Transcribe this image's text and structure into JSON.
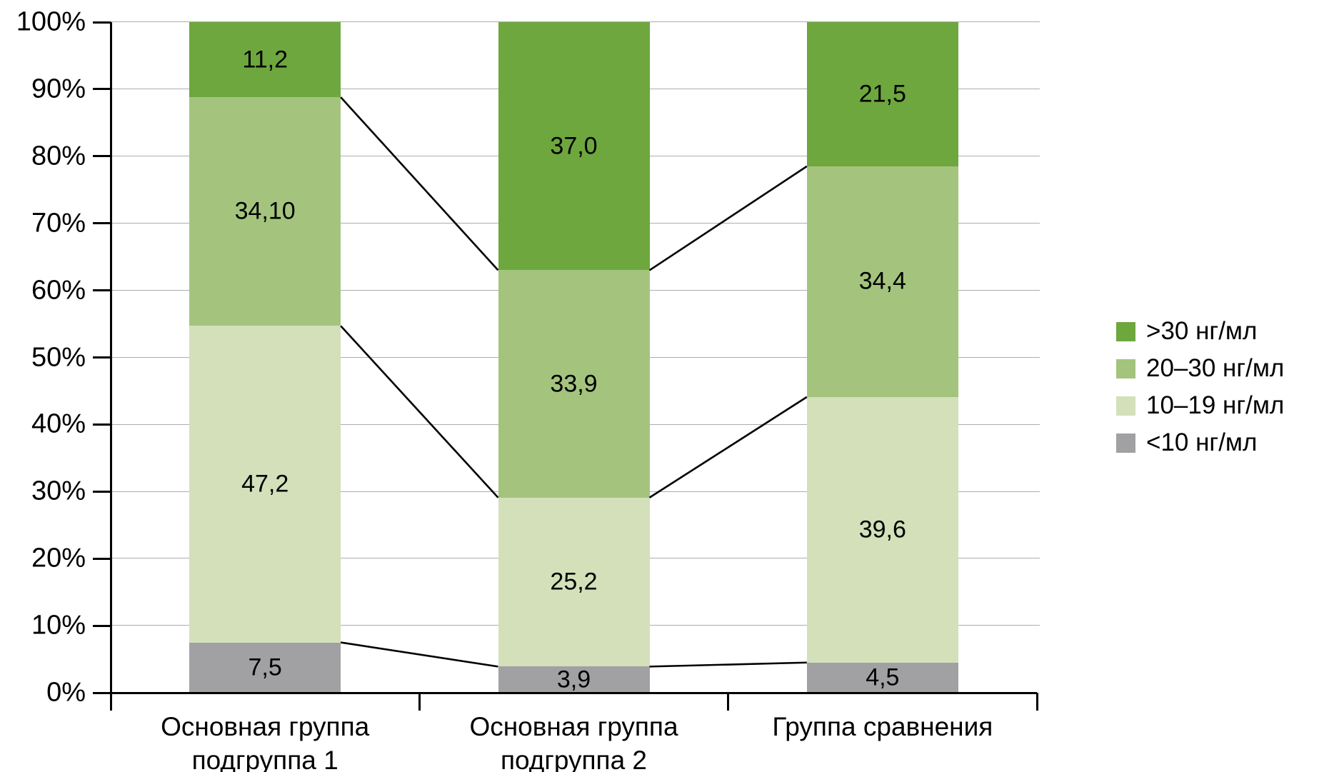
{
  "chart_data": {
    "type": "bar",
    "subtype": "stacked-100-percent-column",
    "title": "",
    "xlabel": "",
    "ylabel": "",
    "categories": [
      {
        "lines": [
          "Основная группа",
          "подгруппа 1"
        ]
      },
      {
        "lines": [
          "Основная группа",
          "подгруппа 2"
        ]
      },
      {
        "lines": [
          "Группа сравнения"
        ]
      }
    ],
    "series": [
      {
        "name": "<10 нг/мл",
        "color": "#a1a1a3",
        "values": [
          7.5,
          3.9,
          4.5
        ],
        "labels": [
          "7,5",
          "3,9",
          "4,5"
        ]
      },
      {
        "name": "10–19 нг/мл",
        "color": "#d3e0ba",
        "values": [
          47.2,
          25.2,
          39.6
        ],
        "labels": [
          "47,2",
          "25,2",
          "39,6"
        ]
      },
      {
        "name": "20–30 нг/мл",
        "color": "#a4c47e",
        "values": [
          34.1,
          33.9,
          34.4
        ],
        "labels": [
          "34,10",
          "33,9",
          "34,4"
        ]
      },
      {
        "name": ">30 нг/мл",
        "color": "#6da73e",
        "values": [
          11.2,
          37.0,
          21.5
        ],
        "labels": [
          "11,2",
          "37,0",
          "21,5"
        ]
      }
    ],
    "legend": {
      "position": "right",
      "items": [
        ">30 нг/мл",
        "20–30 нг/мл",
        "10–19 нг/мл",
        "<10 нг/мл"
      ]
    },
    "y_axis": {
      "min": 0,
      "max": 100,
      "tick_step": 10,
      "ticks": [
        "0%",
        "10%",
        "20%",
        "30%",
        "40%",
        "50%",
        "60%",
        "70%",
        "80%",
        "90%",
        "100%"
      ]
    },
    "grid": true,
    "connector_lines_between_bars": true,
    "colors": {
      "axis": "#000000",
      "gridline": "#adadad",
      "connector": "#000000",
      "label_text": "#000000",
      "background": "#ffffff"
    }
  }
}
